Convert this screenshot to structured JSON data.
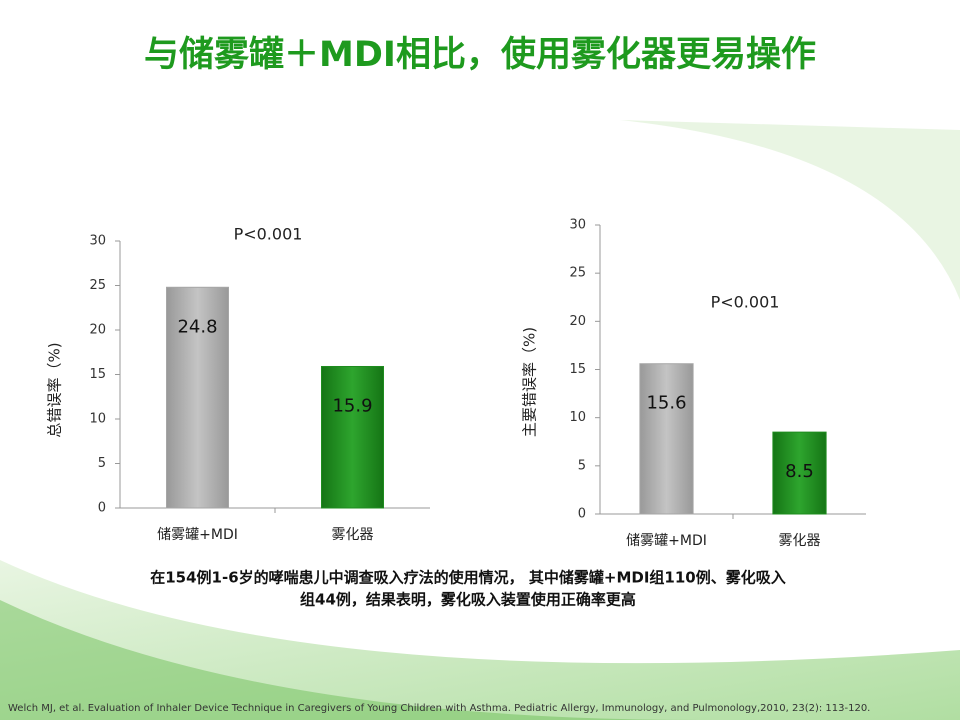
{
  "title": "与储雾罐＋MDI相比，使用雾化器更易操作",
  "caption": [
    "在154例1-6岁的哮喘患儿中调查吸入疗法的使用情况， 其中储雾罐+MDI组110例、雾化吸入",
    "组44例，结果表明，雾化吸入装置使用正确率更高"
  ],
  "reference": "Welch MJ, et al. Evaluation of Inhaler Device Technique in Caregivers of Young Children with Asthma. Pediatric  Allergy, Immunology, and Pulmonology,2010, 23(2): 113-120.",
  "chart_data": [
    {
      "type": "bar",
      "y_label": "总错误率（%)",
      "annotation": "P<0.001",
      "categories": [
        "储雾罐+MDI",
        "雾化器"
      ],
      "values": [
        24.8,
        15.9
      ],
      "colors": [
        "#a6a6a6",
        "#1e8c1e"
      ],
      "ylim": [
        0,
        30
      ],
      "yticks": [
        0,
        5,
        10,
        15,
        20,
        25,
        30
      ]
    },
    {
      "type": "bar",
      "y_label": "主要错误率（%)",
      "annotation": "P<0.001",
      "categories": [
        "储雾罐+MDI",
        "雾化器"
      ],
      "values": [
        15.6,
        8.5
      ],
      "colors": [
        "#a6a6a6",
        "#1e8c1e"
      ],
      "ylim": [
        0,
        30
      ],
      "yticks": [
        0,
        5,
        10,
        15,
        20,
        25,
        30
      ]
    }
  ]
}
